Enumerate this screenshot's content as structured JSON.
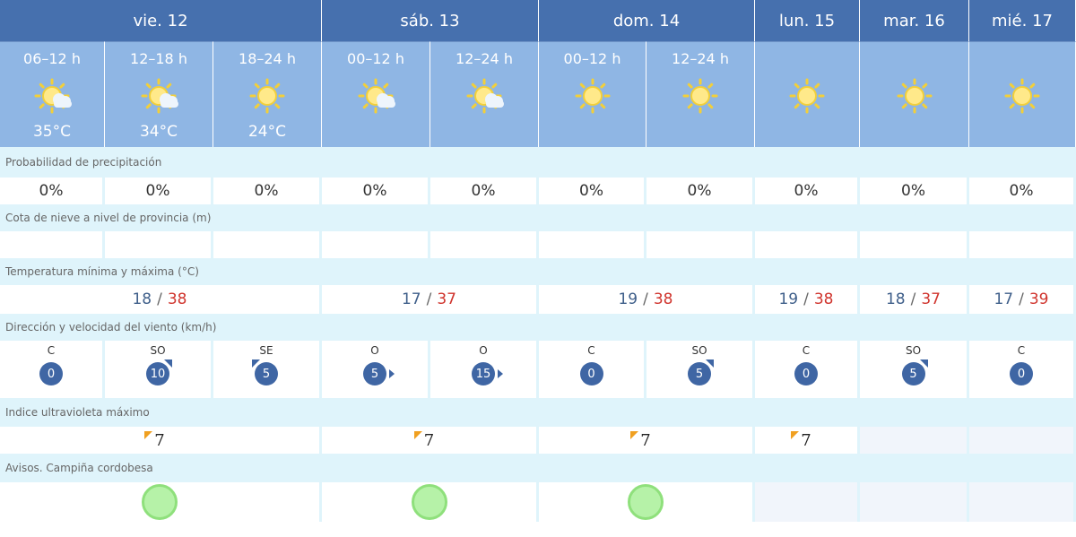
{
  "days": [
    "vie. 12",
    "sáb. 13",
    "dom. 14",
    "lun. 15",
    "mar. 16",
    "mié. 17"
  ],
  "periods": [
    {
      "label": "06–12 h",
      "icon": "sun-cloud-icon",
      "temp": "35°C"
    },
    {
      "label": "12–18 h",
      "icon": "sun-cloud-icon",
      "temp": "34°C"
    },
    {
      "label": "18–24 h",
      "icon": "sun-icon",
      "temp": "24°C"
    },
    {
      "label": "00–12 h",
      "icon": "sun-cloud-icon",
      "temp": ""
    },
    {
      "label": "12–24 h",
      "icon": "sun-cloud-icon",
      "temp": ""
    },
    {
      "label": "00–12 h",
      "icon": "sun-icon",
      "temp": ""
    },
    {
      "label": "12–24 h",
      "icon": "sun-icon",
      "temp": ""
    },
    {
      "label": "",
      "icon": "sun-icon",
      "temp": ""
    },
    {
      "label": "",
      "icon": "sun-icon",
      "temp": ""
    },
    {
      "label": "",
      "icon": "sun-icon",
      "temp": ""
    }
  ],
  "labels": {
    "precip": "Probabilidad de precipitación",
    "snow": "Cota de nieve a nivel de provincia (m)",
    "temp": "Temperatura mínima y máxima (°C)",
    "wind": "Dirección y velocidad del viento (km/h)",
    "uv": "Indice ultravioleta máximo",
    "alerts": "Avisos. Campiña cordobesa"
  },
  "precip": [
    "0%",
    "0%",
    "0%",
    "0%",
    "0%",
    "0%",
    "0%",
    "0%",
    "0%",
    "0%"
  ],
  "temps": [
    {
      "min": "18",
      "max": "38"
    },
    {
      "min": "17",
      "max": "37"
    },
    {
      "min": "19",
      "max": "38"
    },
    {
      "min": "19",
      "max": "38"
    },
    {
      "min": "18",
      "max": "37"
    },
    {
      "min": "17",
      "max": "39"
    }
  ],
  "separator": "/",
  "wind": [
    {
      "dir": "C",
      "speed": "0"
    },
    {
      "dir": "SO",
      "speed": "10"
    },
    {
      "dir": "SE",
      "speed": "5"
    },
    {
      "dir": "O",
      "speed": "5"
    },
    {
      "dir": "O",
      "speed": "15"
    },
    {
      "dir": "C",
      "speed": "0"
    },
    {
      "dir": "SO",
      "speed": "5"
    },
    {
      "dir": "C",
      "speed": "0"
    },
    {
      "dir": "SO",
      "speed": "5"
    },
    {
      "dir": "C",
      "speed": "0"
    }
  ],
  "uv": [
    "7",
    "7",
    "7",
    "7"
  ],
  "alert_level_color": "#b6f2a8",
  "colors": {
    "header": "#4670ae",
    "period": "#8fb6e4",
    "label": "#dff4fb",
    "max": "#d0352e",
    "min": "#3f5f8a"
  }
}
